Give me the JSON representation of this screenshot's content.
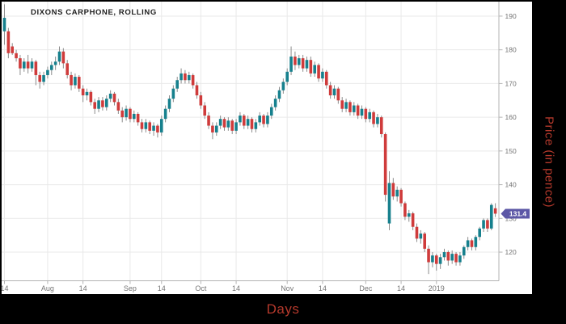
{
  "title": "DIXONS CARPHONE, ROLLING",
  "axes": {
    "x_title": "Days",
    "y_title": "Price (in pence)",
    "axis_title_color": "#b5392c",
    "tick_label_color": "#757575",
    "grid_color": "#e9e9e9",
    "axis_line_color": "#b3b3b3"
  },
  "last_price": {
    "value": "131.4",
    "badge_color": "#5c57a6",
    "text_color": "#ffffff"
  },
  "chart_data": {
    "type": "candlestick",
    "title": "DIXONS CARPHONE, ROLLING",
    "xlabel": "Days",
    "ylabel": "Price (in pence)",
    "ylim": [
      111.5,
      194.3
    ],
    "y_ticks": [
      120,
      130,
      140,
      150,
      160,
      170,
      180,
      190
    ],
    "x_ticks": [
      {
        "index": 0,
        "label": "14"
      },
      {
        "index": 11,
        "label": "Aug"
      },
      {
        "index": 20,
        "label": "14"
      },
      {
        "index": 32,
        "label": "Sep"
      },
      {
        "index": 40,
        "label": "14"
      },
      {
        "index": 50,
        "label": "Oct"
      },
      {
        "index": 59,
        "label": "14"
      },
      {
        "index": 72,
        "label": "Nov"
      },
      {
        "index": 81,
        "label": "14"
      },
      {
        "index": 92,
        "label": "Dec"
      },
      {
        "index": 101,
        "label": "14"
      },
      {
        "index": 110,
        "label": "2019"
      }
    ],
    "grid": true,
    "legend": "none",
    "up_color": "#16808D",
    "down_color": "#CF3B3B",
    "wick_color": "#8c8c8c",
    "last_price": 131.4,
    "candles": [
      [
        185.5,
        193.5,
        181.5,
        189.5
      ],
      [
        185.5,
        186.5,
        177.5,
        179
      ],
      [
        181,
        182,
        178.5,
        179
      ],
      [
        179,
        180,
        176.5,
        177.5
      ],
      [
        177.5,
        178.5,
        172.5,
        174.5
      ],
      [
        174.5,
        177.5,
        173.5,
        176.5
      ],
      [
        176.5,
        178.5,
        173,
        174.5
      ],
      [
        174.5,
        177.5,
        173.5,
        176.5
      ],
      [
        176.5,
        177,
        169.5,
        172.5
      ],
      [
        172.5,
        173.5,
        168.5,
        170.5
      ],
      [
        170.5,
        173.5,
        169.5,
        172.5
      ],
      [
        172.5,
        175,
        171.5,
        174
      ],
      [
        174,
        176.5,
        172.5,
        175.5
      ],
      [
        175.5,
        178,
        174,
        176.5
      ],
      [
        176.5,
        181,
        175.5,
        179.5
      ],
      [
        179.5,
        180.5,
        174.5,
        176
      ],
      [
        176,
        177,
        171.5,
        172.5
      ],
      [
        172.5,
        173.5,
        168,
        169.5
      ],
      [
        169.5,
        173,
        168.5,
        172
      ],
      [
        172,
        172.5,
        167.5,
        168.5
      ],
      [
        168.5,
        169.5,
        164.5,
        166.5
      ],
      [
        166.5,
        168.5,
        165,
        167.5
      ],
      [
        167.5,
        168,
        163.5,
        164.5
      ],
      [
        164.5,
        165.5,
        161,
        162.5
      ],
      [
        162.5,
        166,
        161.5,
        165
      ],
      [
        165,
        166,
        162,
        163
      ],
      [
        163,
        166.5,
        162,
        165.5
      ],
      [
        165.5,
        168,
        164.5,
        167
      ],
      [
        167,
        167.5,
        163.5,
        164.5
      ],
      [
        164.5,
        165.5,
        161,
        162
      ],
      [
        162,
        163,
        158.5,
        160
      ],
      [
        160,
        163.5,
        159,
        162.5
      ],
      [
        162.5,
        163,
        158.5,
        159.5
      ],
      [
        159.5,
        162,
        158.5,
        161
      ],
      [
        161,
        161.5,
        157.5,
        158.5
      ],
      [
        158.5,
        159.5,
        155.5,
        156.5
      ],
      [
        156.5,
        159.5,
        155.5,
        158.5
      ],
      [
        158.5,
        159,
        155,
        156
      ],
      [
        156,
        158.5,
        154.5,
        157.5
      ],
      [
        157.5,
        158,
        154,
        155.5
      ],
      [
        155.5,
        160.5,
        154.5,
        159.5
      ],
      [
        159.5,
        163.5,
        158.5,
        162.5
      ],
      [
        162.5,
        166.5,
        161.5,
        165.5
      ],
      [
        165.5,
        169.5,
        164.5,
        168.5
      ],
      [
        168.5,
        172,
        167.5,
        171
      ],
      [
        171,
        174.5,
        170,
        173
      ],
      [
        173,
        174,
        170,
        171
      ],
      [
        171,
        173.5,
        170,
        172.5
      ],
      [
        172.5,
        173,
        168.5,
        169.5
      ],
      [
        169.5,
        170.5,
        165.5,
        166.5
      ],
      [
        166.5,
        167.5,
        162.5,
        163.5
      ],
      [
        163.5,
        164.5,
        159.5,
        160.5
      ],
      [
        160.5,
        161.5,
        156.5,
        157.5
      ],
      [
        157.5,
        158.5,
        153.5,
        155.5
      ],
      [
        155.5,
        158.5,
        154.5,
        157.5
      ],
      [
        157.5,
        160.5,
        156.5,
        159.5
      ],
      [
        159.5,
        160,
        156,
        157
      ],
      [
        157,
        160,
        156,
        159
      ],
      [
        159,
        159.5,
        155,
        156
      ],
      [
        156,
        159.5,
        155,
        158.5
      ],
      [
        158.5,
        161.5,
        157.5,
        160.5
      ],
      [
        160.5,
        161,
        156.5,
        157.5
      ],
      [
        157.5,
        160.5,
        156.5,
        159.5
      ],
      [
        159.5,
        160,
        155.5,
        156.5
      ],
      [
        156.5,
        159.5,
        155.5,
        158.5
      ],
      [
        158.5,
        161.5,
        157.5,
        160.5
      ],
      [
        160.5,
        161,
        157,
        158
      ],
      [
        158,
        161.5,
        157,
        160.5
      ],
      [
        160.5,
        164,
        159.5,
        163
      ],
      [
        163,
        166.5,
        162,
        165.5
      ],
      [
        165.5,
        169,
        164.5,
        168
      ],
      [
        168,
        171.5,
        167,
        170.5
      ],
      [
        170.5,
        174.5,
        169.5,
        173.5
      ],
      [
        173.5,
        181,
        172.5,
        178
      ],
      [
        178,
        179.5,
        174,
        175.5
      ],
      [
        175.5,
        178.5,
        174.5,
        177.5
      ],
      [
        177.5,
        178.5,
        173.5,
        174.5
      ],
      [
        174.5,
        178,
        173.5,
        177
      ],
      [
        177,
        178,
        172,
        173
      ],
      [
        173,
        176.5,
        172,
        175.5
      ],
      [
        175.5,
        176,
        170.5,
        171.5
      ],
      [
        171.5,
        174.5,
        170.5,
        173.5
      ],
      [
        173.5,
        174,
        168.5,
        169.5
      ],
      [
        169.5,
        170.5,
        165.5,
        166.5
      ],
      [
        166.5,
        169.5,
        165.5,
        168.5
      ],
      [
        168.5,
        169,
        164,
        165
      ],
      [
        165,
        166,
        161.5,
        162.5
      ],
      [
        162.5,
        165.5,
        161.5,
        164.5
      ],
      [
        164.5,
        165,
        160.5,
        161.5
      ],
      [
        161.5,
        164.5,
        160.5,
        163.5
      ],
      [
        163.5,
        164,
        159.5,
        160.5
      ],
      [
        160.5,
        163.5,
        159.5,
        162.5
      ],
      [
        162.5,
        163,
        158.5,
        159.5
      ],
      [
        159.5,
        162.5,
        158.5,
        161.5
      ],
      [
        161.5,
        162,
        157,
        158
      ],
      [
        158,
        161,
        157,
        160
      ],
      [
        160,
        160.5,
        154,
        155
      ],
      [
        155,
        155.5,
        135,
        137
      ],
      [
        128.5,
        144,
        126.5,
        140.5
      ],
      [
        140.5,
        142,
        135.5,
        136.5
      ],
      [
        136.5,
        139.5,
        135,
        138.5
      ],
      [
        138.5,
        139,
        133.5,
        134.5
      ],
      [
        134.5,
        135,
        129.5,
        130.5
      ],
      [
        130.5,
        132.5,
        129,
        131.5
      ],
      [
        131.5,
        132,
        126.5,
        127.5
      ],
      [
        127.5,
        128.5,
        123,
        124
      ],
      [
        124,
        126.5,
        122.5,
        125.5
      ],
      [
        125.5,
        126,
        120,
        121
      ],
      [
        121,
        122,
        113.5,
        117
      ],
      [
        117,
        120,
        115.5,
        119
      ],
      [
        119,
        119.5,
        114.5,
        116.5
      ],
      [
        116.5,
        119.5,
        115,
        118.5
      ],
      [
        118.5,
        121,
        117.5,
        120
      ],
      [
        120,
        120.5,
        116,
        117.5
      ],
      [
        117.5,
        120.5,
        116.5,
        119.5
      ],
      [
        119.5,
        120,
        116,
        117
      ],
      [
        117,
        120,
        116,
        119
      ],
      [
        119,
        122,
        118,
        121.5
      ],
      [
        121.5,
        124.5,
        120.5,
        123.5
      ],
      [
        123.5,
        124,
        120.5,
        121.5
      ],
      [
        121.5,
        125,
        120.5,
        124.5
      ],
      [
        124.5,
        127.5,
        123.5,
        127
      ],
      [
        127,
        130,
        126,
        129.5
      ],
      [
        129.5,
        130,
        126,
        127
      ],
      [
        127,
        134.5,
        126.5,
        134
      ],
      [
        133,
        134.5,
        130.4,
        131.4
      ]
    ]
  }
}
